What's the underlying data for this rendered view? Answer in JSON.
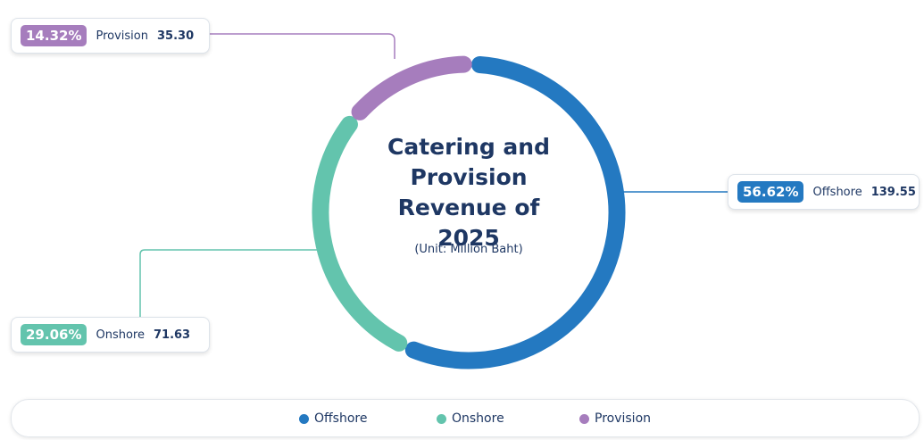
{
  "chart_data": {
    "type": "donut",
    "title": "Catering and Provision Revenue of 2025",
    "subtitle": "(Unit: Million Baht)",
    "categories": [
      "Offshore",
      "Onshore",
      "Provision"
    ],
    "values": [
      139.55,
      71.63,
      35.3
    ],
    "value_labels": [
      "139.55",
      "71.63",
      "35.30"
    ],
    "percentages": [
      56.62,
      29.06,
      14.32
    ],
    "percentage_labels": [
      "56.62%",
      "29.06%",
      "14.32%"
    ],
    "colors": [
      "#2479c1",
      "#63c4ad",
      "#a67dbd"
    ],
    "legend": "bottom"
  }
}
